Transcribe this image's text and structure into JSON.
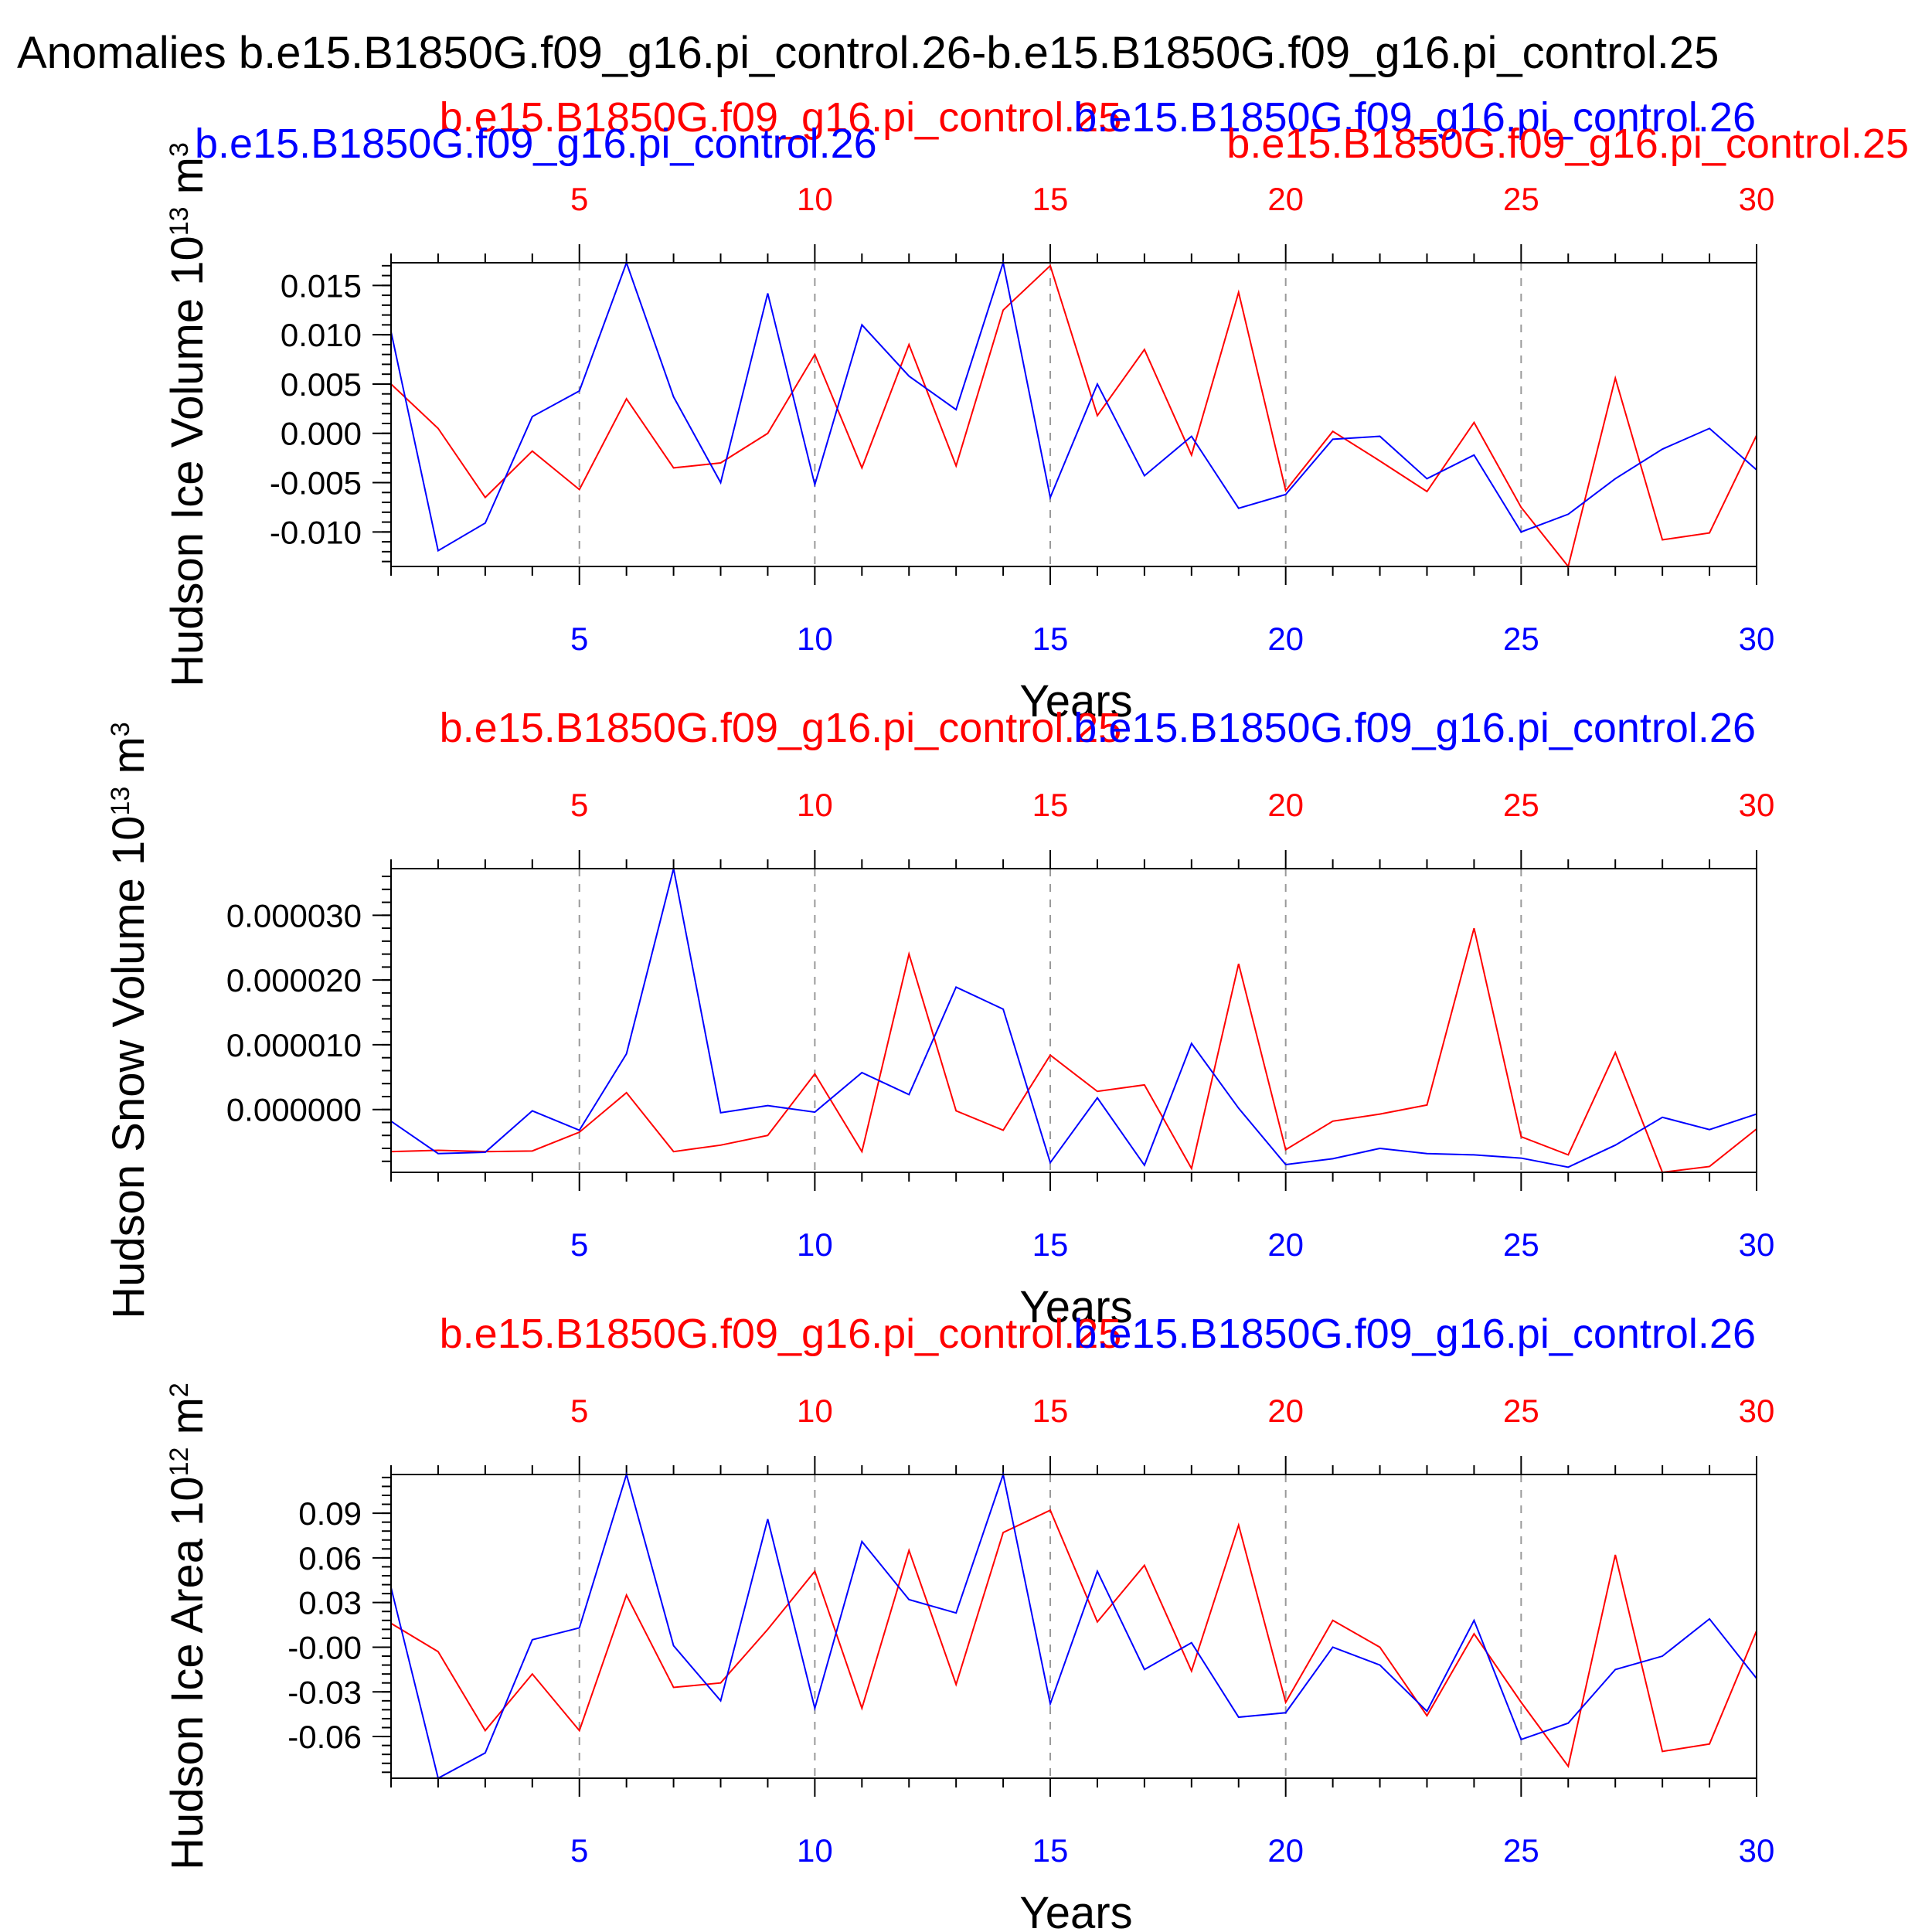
{
  "title": "Anomalies b.e15.B1850G.f09_g16.pi_control.26-b.e15.B1850G.f09_g16.pi_control.25",
  "colors": {
    "run_a": "#ff0000",
    "run_b": "#0000ff",
    "text": "#000000",
    "grid": "#999999"
  },
  "chart_data": [
    {
      "type": "line",
      "ylabel": "Hudson Ice Volume 10",
      "ylabel_exp": "13",
      "ylabel_unit": " m",
      "ylabel_unit_exp": "3",
      "xlabel": "Years",
      "xlim": [
        1,
        30
      ],
      "ylim": [
        -0.0135,
        0.0173
      ],
      "yticks": [
        0.015,
        0.01,
        0.005,
        0.0,
        -0.005,
        -0.01
      ],
      "ytick_labels": [
        "0.015",
        "0.010",
        "0.005",
        "0.000",
        "-0.005",
        "-0.010"
      ],
      "xticks": [
        5,
        10,
        15,
        20,
        25,
        30
      ],
      "xtick_labels": [
        "5",
        "10",
        "15",
        "20",
        "25",
        "30"
      ],
      "x": [
        1,
        2,
        3,
        4,
        5,
        6,
        7,
        8,
        9,
        10,
        11,
        12,
        13,
        14,
        15,
        16,
        17,
        18,
        19,
        20,
        21,
        22,
        23,
        24,
        25,
        26,
        27,
        28,
        29,
        30
      ],
      "series": [
        {
          "name": "b.e15.B1850G.f09_g16.pi_control.25",
          "color": "#ff0000",
          "values": [
            0.005,
            0.0005,
            -0.0065,
            -0.0018,
            -0.0057,
            0.0035,
            -0.0035,
            -0.003,
            0.0,
            0.008,
            -0.0035,
            0.009,
            -0.0033,
            0.0125,
            0.017,
            0.0018,
            0.0085,
            -0.0022,
            0.0143,
            -0.0058,
            0.0002,
            -0.0028,
            -0.0059,
            0.0011,
            -0.0075,
            -0.0135,
            0.0056,
            -0.0108,
            -0.0101,
            -0.0002
          ]
        },
        {
          "name": "b.e15.B1850G.f09_g16.pi_control.26",
          "color": "#0000ff",
          "values": [
            0.0103,
            -0.0119,
            -0.0091,
            0.0017,
            0.0043,
            0.0173,
            0.0037,
            -0.005,
            0.0142,
            -0.0052,
            0.011,
            0.0058,
            0.0024,
            0.0173,
            -0.0065,
            0.005,
            -0.0043,
            -0.0003,
            -0.0076,
            -0.0062,
            -0.0006,
            -0.0003,
            -0.0046,
            -0.0022,
            -0.01,
            -0.0082,
            -0.0046,
            -0.0016,
            0.0005,
            -0.0037
          ]
        }
      ]
    },
    {
      "type": "line",
      "ylabel": "Hudson Snow Volume 10",
      "ylabel_exp": "13",
      "ylabel_unit": " m",
      "ylabel_unit_exp": "3",
      "xlabel": "Years",
      "xlim": [
        1,
        30
      ],
      "ylim": [
        -9.7e-06,
        3.72e-05
      ],
      "yticks": [
        3e-05,
        2e-05,
        1e-05,
        0.0
      ],
      "ytick_labels": [
        "0.000030",
        "0.000020",
        "0.000010",
        "0.000000"
      ],
      "xticks": [
        5,
        10,
        15,
        20,
        25,
        30
      ],
      "xtick_labels": [
        "5",
        "10",
        "15",
        "20",
        "25",
        "30"
      ],
      "x": [
        1,
        2,
        3,
        4,
        5,
        6,
        7,
        8,
        9,
        10,
        11,
        12,
        13,
        14,
        15,
        16,
        17,
        18,
        19,
        20,
        21,
        22,
        23,
        24,
        25,
        26,
        27,
        28,
        29,
        30
      ],
      "series": [
        {
          "name": "b.e15.B1850G.f09_g16.pi_control.25",
          "color": "#ff0000",
          "values": [
            -6.5e-06,
            -6.3e-06,
            -6.5e-06,
            -6.4e-06,
            -3.5e-06,
            2.6e-06,
            -6.5e-06,
            -5.5e-06,
            -4e-06,
            5.5e-06,
            -6.5e-06,
            2.4e-05,
            -2e-07,
            -3.2e-06,
            8.4e-06,
            2.8e-06,
            3.8e-06,
            -9.1e-06,
            2.25e-05,
            -6.2e-06,
            -1.8e-06,
            -7e-07,
            7e-07,
            2.8e-05,
            -4.2e-06,
            -7e-06,
            8.8e-06,
            -9.7e-06,
            -8.8e-06,
            -3e-06
          ]
        },
        {
          "name": "b.e15.B1850G.f09_g16.pi_control.26",
          "color": "#0000ff",
          "values": [
            -1.8e-06,
            -6.8e-06,
            -6.6e-06,
            -2e-07,
            -3.2e-06,
            8.6e-06,
            3.72e-05,
            -5e-07,
            6e-07,
            -4e-07,
            5.7e-06,
            2.3e-06,
            1.89e-05,
            1.55e-05,
            -8.2e-06,
            1.8e-06,
            -8.6e-06,
            1.02e-05,
            2e-07,
            -8.5e-06,
            -7.6e-06,
            -6e-06,
            -6.8e-06,
            -7e-06,
            -7.5e-06,
            -8.9e-06,
            -5.5e-06,
            -1.2e-06,
            -3.1e-06,
            -7e-07
          ]
        }
      ]
    },
    {
      "type": "line",
      "ylabel": "Hudson Ice Area 10",
      "ylabel_exp": "12",
      "ylabel_unit": " m",
      "ylabel_unit_exp": "2",
      "xlabel": "Years",
      "xlim": [
        1,
        30
      ],
      "ylim": [
        -0.088,
        0.116
      ],
      "yticks": [
        0.09,
        0.06,
        0.03,
        0.0,
        -0.03,
        -0.06
      ],
      "ytick_labels": [
        "0.09",
        "0.06",
        "0.03",
        "-0.00",
        "-0.03",
        "-0.06"
      ],
      "xticks": [
        5,
        10,
        15,
        20,
        25,
        30
      ],
      "xtick_labels": [
        "5",
        "10",
        "15",
        "20",
        "25",
        "30"
      ],
      "x": [
        1,
        2,
        3,
        4,
        5,
        6,
        7,
        8,
        9,
        10,
        11,
        12,
        13,
        14,
        15,
        16,
        17,
        18,
        19,
        20,
        21,
        22,
        23,
        24,
        25,
        26,
        27,
        28,
        29,
        30
      ],
      "series": [
        {
          "name": "b.e15.B1850G.f09_g16.pi_control.25",
          "color": "#ff0000",
          "values": [
            0.016,
            -0.003,
            -0.056,
            -0.018,
            -0.056,
            0.035,
            -0.027,
            -0.024,
            0.012,
            0.051,
            -0.041,
            0.065,
            -0.025,
            0.077,
            0.092,
            0.017,
            0.055,
            -0.016,
            0.082,
            -0.037,
            0.018,
            0.0,
            -0.046,
            0.009,
            -0.037,
            -0.08,
            0.062,
            -0.07,
            -0.065,
            0.011
          ]
        },
        {
          "name": "b.e15.B1850G.f09_g16.pi_control.26",
          "color": "#0000ff",
          "values": [
            0.04,
            -0.088,
            -0.071,
            0.005,
            0.013,
            0.116,
            0.001,
            -0.036,
            0.086,
            -0.041,
            0.071,
            0.032,
            0.023,
            0.116,
            -0.038,
            0.051,
            -0.015,
            0.003,
            -0.047,
            -0.044,
            0.0,
            -0.012,
            -0.043,
            0.018,
            -0.062,
            -0.051,
            -0.015,
            -0.006,
            0.019,
            -0.021
          ]
        }
      ]
    }
  ]
}
